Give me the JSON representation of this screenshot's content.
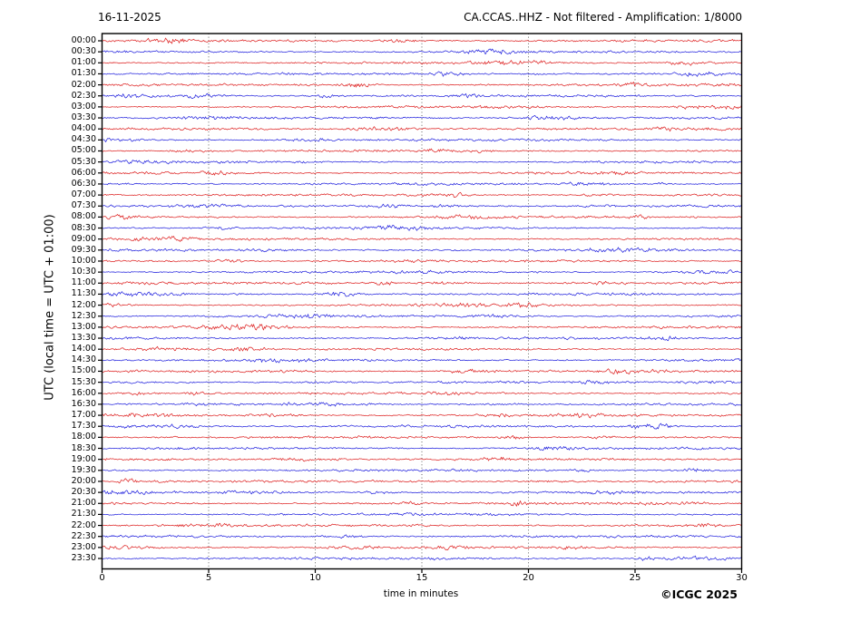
{
  "header": {
    "date": "16-11-2025",
    "title": "CA.CCAS..HHZ - Not filtered - Amplification: 1/8000"
  },
  "axes": {
    "y_label": "UTC (local time = UTC + 01:00)",
    "x_label": "time in minutes",
    "x_ticks": [
      0,
      5,
      10,
      15,
      20,
      25,
      30
    ],
    "x_range_minutes": [
      0,
      30
    ],
    "grid_minutes": [
      5,
      10,
      15,
      20,
      25
    ]
  },
  "footer": {
    "copyright": "©ICGC 2025"
  },
  "colors": {
    "trace_red": "#dd2222",
    "trace_blue": "#2222dd",
    "grid": "#555555",
    "frame": "#000000",
    "text": "#000000"
  },
  "chart_data": {
    "type": "line",
    "title": "CA.CCAS..HHZ - Not filtered - Amplification: 1/8000",
    "xlabel": "time in minutes",
    "ylabel": "UTC (local time = UTC + 01:00)",
    "date": "16-11-2025",
    "x_range_minutes": [
      0,
      30
    ],
    "x_ticks": [
      0,
      5,
      10,
      15,
      20,
      25,
      30
    ],
    "grid": "vertical dotted lines every 5 minutes",
    "legend": "none",
    "description": "Helicorder/drumplot: 48 half-hour seismogram traces of low-amplitude background noise (roughly flat lines with small random fluctuations, no significant seismic events). Traces on the hour are red, on the half-hour blue.",
    "rows": [
      {
        "time": "00:00",
        "color": "red"
      },
      {
        "time": "00:30",
        "color": "blue"
      },
      {
        "time": "01:00",
        "color": "red"
      },
      {
        "time": "01:30",
        "color": "blue"
      },
      {
        "time": "02:00",
        "color": "red"
      },
      {
        "time": "02:30",
        "color": "blue"
      },
      {
        "time": "03:00",
        "color": "red"
      },
      {
        "time": "03:30",
        "color": "blue"
      },
      {
        "time": "04:00",
        "color": "red"
      },
      {
        "time": "04:30",
        "color": "blue"
      },
      {
        "time": "05:00",
        "color": "red"
      },
      {
        "time": "05:30",
        "color": "blue"
      },
      {
        "time": "06:00",
        "color": "red"
      },
      {
        "time": "06:30",
        "color": "blue"
      },
      {
        "time": "07:00",
        "color": "red"
      },
      {
        "time": "07:30",
        "color": "blue"
      },
      {
        "time": "08:00",
        "color": "red"
      },
      {
        "time": "08:30",
        "color": "blue"
      },
      {
        "time": "09:00",
        "color": "red"
      },
      {
        "time": "09:30",
        "color": "blue"
      },
      {
        "time": "10:00",
        "color": "red"
      },
      {
        "time": "10:30",
        "color": "blue"
      },
      {
        "time": "11:00",
        "color": "red"
      },
      {
        "time": "11:30",
        "color": "blue"
      },
      {
        "time": "12:00",
        "color": "red"
      },
      {
        "time": "12:30",
        "color": "blue"
      },
      {
        "time": "13:00",
        "color": "red"
      },
      {
        "time": "13:30",
        "color": "blue"
      },
      {
        "time": "14:00",
        "color": "red"
      },
      {
        "time": "14:30",
        "color": "blue"
      },
      {
        "time": "15:00",
        "color": "red"
      },
      {
        "time": "15:30",
        "color": "blue"
      },
      {
        "time": "16:00",
        "color": "red"
      },
      {
        "time": "16:30",
        "color": "blue"
      },
      {
        "time": "17:00",
        "color": "red"
      },
      {
        "time": "17:30",
        "color": "blue"
      },
      {
        "time": "18:00",
        "color": "red"
      },
      {
        "time": "18:30",
        "color": "blue"
      },
      {
        "time": "19:00",
        "color": "red"
      },
      {
        "time": "19:30",
        "color": "blue"
      },
      {
        "time": "20:00",
        "color": "red"
      },
      {
        "time": "20:30",
        "color": "blue"
      },
      {
        "time": "21:00",
        "color": "red"
      },
      {
        "time": "21:30",
        "color": "blue"
      },
      {
        "time": "22:00",
        "color": "red"
      },
      {
        "time": "22:30",
        "color": "blue"
      },
      {
        "time": "23:00",
        "color": "red"
      },
      {
        "time": "23:30",
        "color": "blue"
      }
    ]
  }
}
